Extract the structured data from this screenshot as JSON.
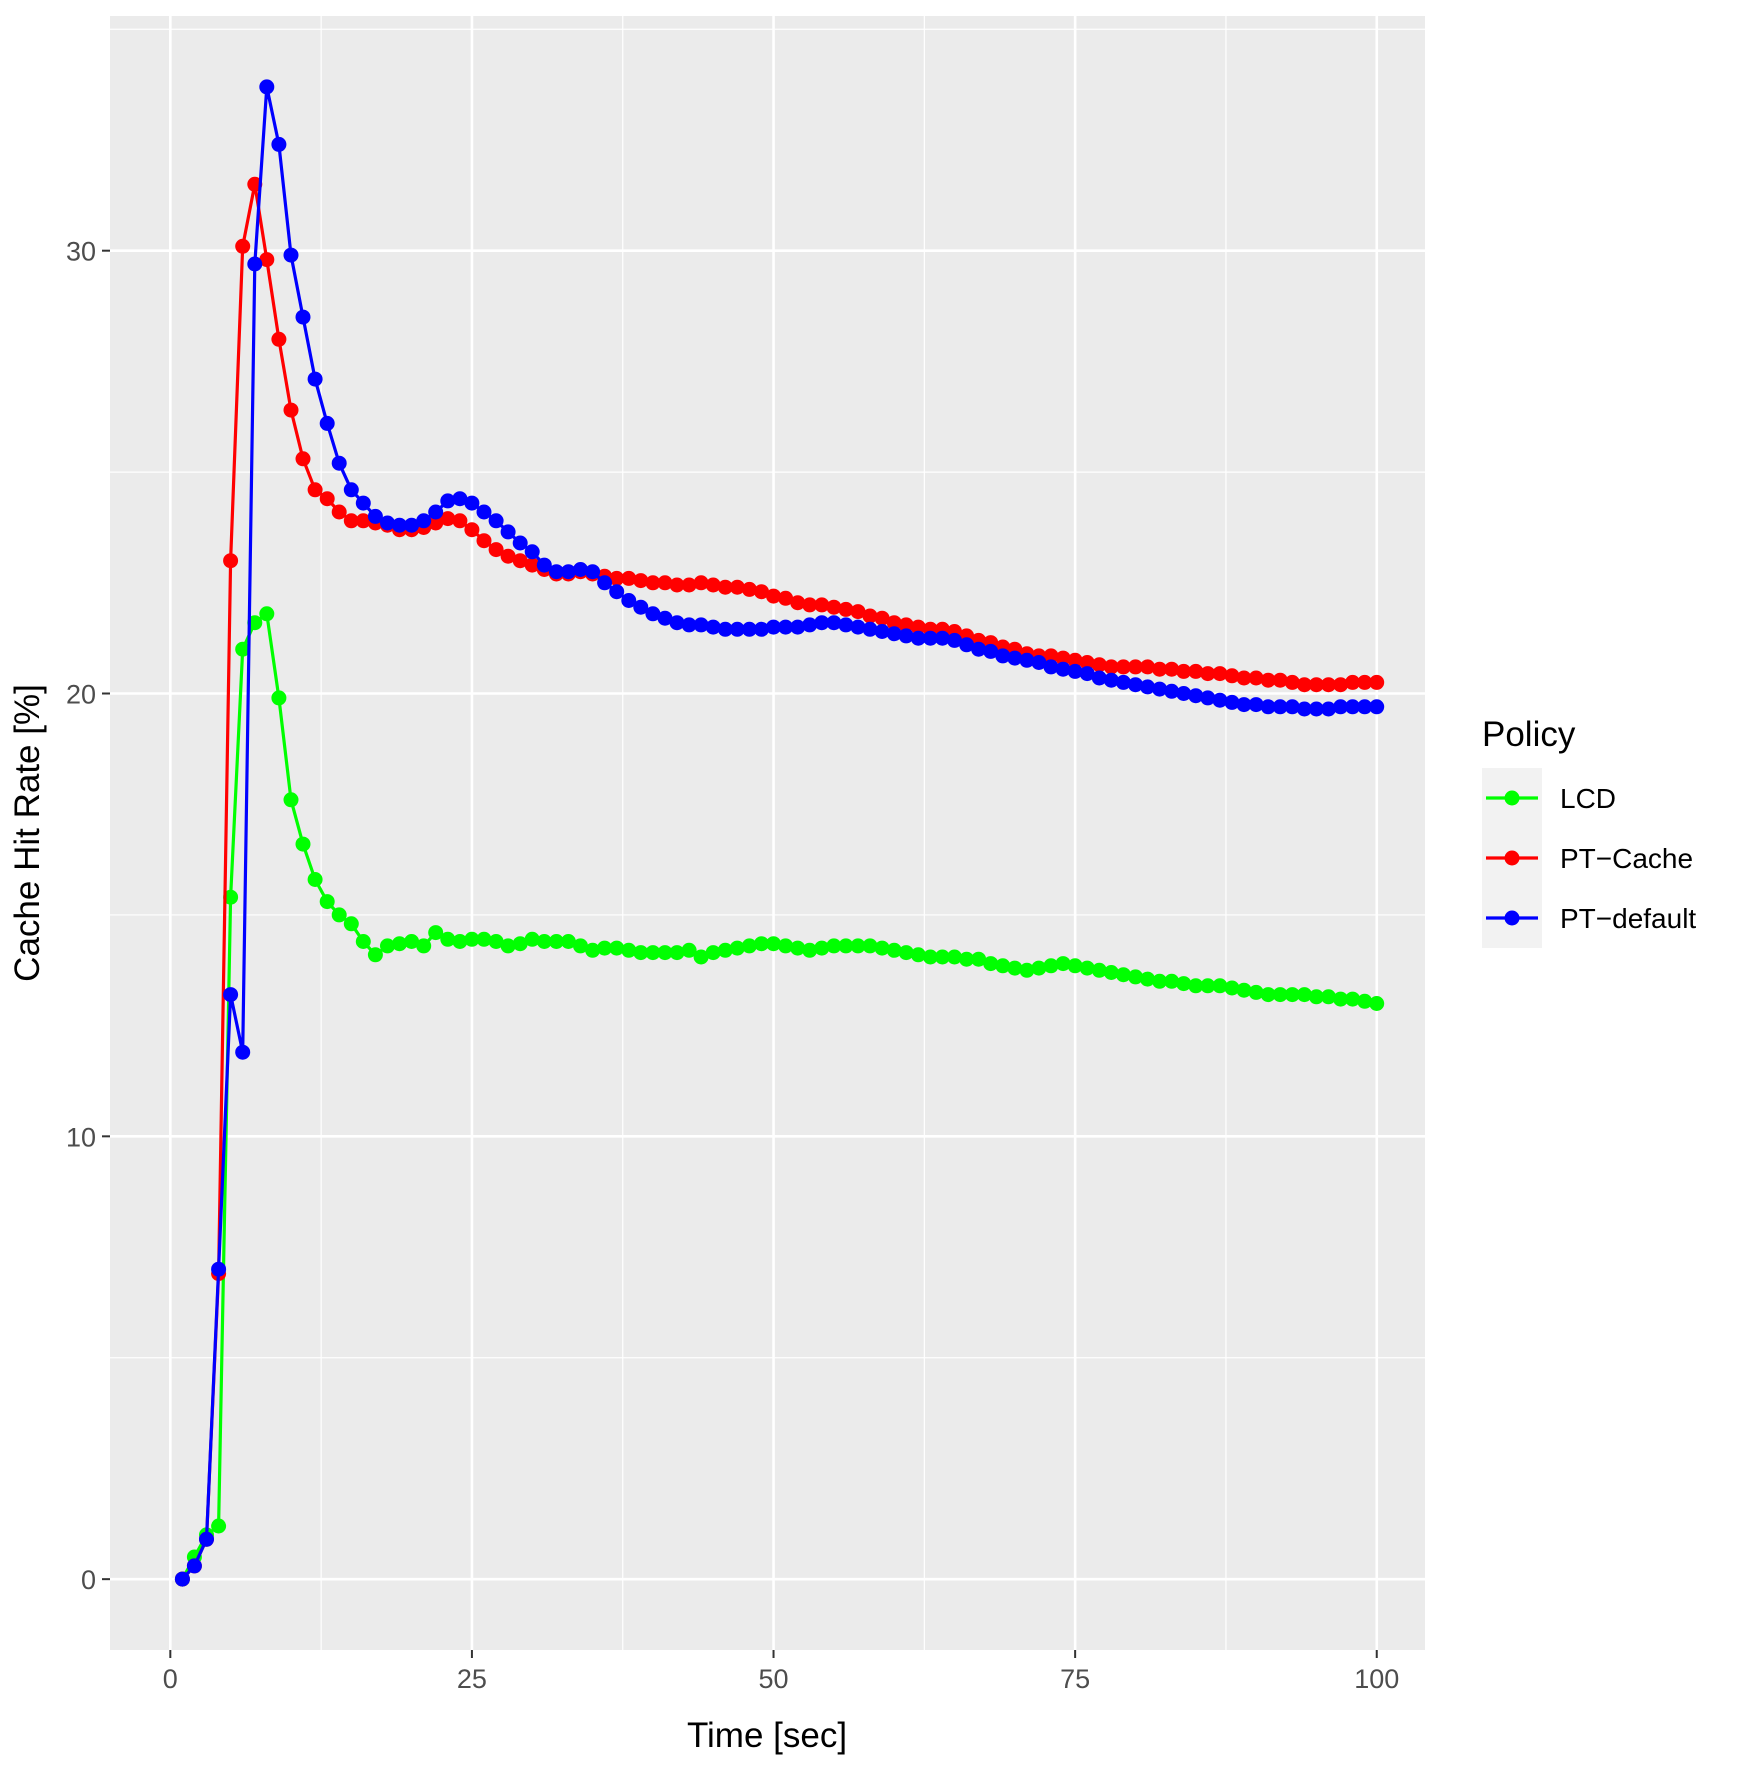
{
  "chart_data": {
    "type": "line",
    "xlabel": "Time [sec]",
    "ylabel": "Cache Hit Rate [%]",
    "xlim": [
      -5,
      104
    ],
    "ylim": [
      -1.6,
      35.3
    ],
    "xticks": [
      0,
      25,
      50,
      75,
      100
    ],
    "yticks": [
      0,
      10,
      20,
      30
    ],
    "legend": {
      "title": "Policy",
      "position": "right"
    },
    "colors": {
      "panel": "#EBEBEB",
      "grid": "#FFFFFF",
      "tick_text": "#4D4D4D"
    },
    "series_keys": [
      {
        "name": "LCD",
        "color": "#00FF00"
      },
      {
        "name": "PT−Cache",
        "color": "#FF0000"
      },
      {
        "name": "PT−default",
        "color": "#0000FF"
      }
    ],
    "series": [
      {
        "name": "LCD",
        "color": "#00FF00",
        "x": [
          1,
          2,
          3,
          4,
          5,
          6,
          7,
          8,
          9,
          10,
          11,
          12,
          13,
          14,
          15,
          16,
          17,
          18,
          19,
          20,
          21,
          22,
          23,
          24,
          25,
          26,
          27,
          28,
          29,
          30,
          31,
          32,
          33,
          34,
          35,
          36,
          37,
          38,
          39,
          40,
          41,
          42,
          43,
          44,
          45,
          46,
          47,
          48,
          49,
          50,
          51,
          52,
          53,
          54,
          55,
          56,
          57,
          58,
          59,
          60,
          61,
          62,
          63,
          64,
          65,
          66,
          67,
          68,
          69,
          70,
          71,
          72,
          73,
          74,
          75,
          76,
          77,
          78,
          79,
          80,
          81,
          82,
          83,
          84,
          85,
          86,
          87,
          88,
          89,
          90,
          91,
          92,
          93,
          94,
          95,
          96,
          97,
          98,
          99,
          100
        ],
        "values": [
          0.0,
          0.5,
          1.0,
          1.2,
          15.4,
          21.0,
          21.6,
          21.8,
          19.9,
          17.6,
          16.6,
          15.8,
          15.3,
          15.0,
          14.8,
          14.4,
          14.1,
          14.3,
          14.35,
          14.4,
          14.3,
          14.6,
          14.45,
          14.4,
          14.45,
          14.45,
          14.4,
          14.3,
          14.35,
          14.45,
          14.4,
          14.4,
          14.4,
          14.3,
          14.2,
          14.25,
          14.25,
          14.2,
          14.15,
          14.15,
          14.15,
          14.15,
          14.2,
          14.05,
          14.15,
          14.2,
          14.25,
          14.3,
          14.35,
          14.35,
          14.3,
          14.25,
          14.2,
          14.25,
          14.3,
          14.3,
          14.3,
          14.3,
          14.25,
          14.2,
          14.15,
          14.1,
          14.05,
          14.05,
          14.05,
          14.0,
          14.0,
          13.9,
          13.85,
          13.8,
          13.75,
          13.8,
          13.85,
          13.9,
          13.85,
          13.8,
          13.75,
          13.7,
          13.65,
          13.6,
          13.55,
          13.5,
          13.5,
          13.45,
          13.4,
          13.4,
          13.4,
          13.35,
          13.3,
          13.25,
          13.2,
          13.2,
          13.2,
          13.2,
          13.15,
          13.15,
          13.1,
          13.1,
          13.05,
          13.0
        ]
      },
      {
        "name": "PT−Cache",
        "color": "#FF0000",
        "x": [
          1,
          2,
          3,
          4,
          5,
          6,
          7,
          8,
          9,
          10,
          11,
          12,
          13,
          14,
          15,
          16,
          17,
          18,
          19,
          20,
          21,
          22,
          23,
          24,
          25,
          26,
          27,
          28,
          29,
          30,
          31,
          32,
          33,
          34,
          35,
          36,
          37,
          38,
          39,
          40,
          41,
          42,
          43,
          44,
          45,
          46,
          47,
          48,
          49,
          50,
          51,
          52,
          53,
          54,
          55,
          56,
          57,
          58,
          59,
          60,
          61,
          62,
          63,
          64,
          65,
          66,
          67,
          68,
          69,
          70,
          71,
          72,
          73,
          74,
          75,
          76,
          77,
          78,
          79,
          80,
          81,
          82,
          83,
          84,
          85,
          86,
          87,
          88,
          89,
          90,
          91,
          92,
          93,
          94,
          95,
          96,
          97,
          98,
          99,
          100
        ],
        "values": [
          0.0,
          0.3,
          0.9,
          6.9,
          23.0,
          30.1,
          31.5,
          29.8,
          28.0,
          26.4,
          25.3,
          24.6,
          24.4,
          24.1,
          23.9,
          23.9,
          23.85,
          23.8,
          23.7,
          23.7,
          23.75,
          23.85,
          23.95,
          23.9,
          23.7,
          23.45,
          23.25,
          23.1,
          23.0,
          22.9,
          22.8,
          22.7,
          22.7,
          22.75,
          22.7,
          22.65,
          22.6,
          22.6,
          22.55,
          22.5,
          22.5,
          22.45,
          22.45,
          22.5,
          22.45,
          22.4,
          22.4,
          22.35,
          22.3,
          22.2,
          22.15,
          22.05,
          22.0,
          22.0,
          21.95,
          21.9,
          21.85,
          21.75,
          21.7,
          21.6,
          21.55,
          21.5,
          21.45,
          21.45,
          21.4,
          21.3,
          21.2,
          21.15,
          21.05,
          21.0,
          20.9,
          20.85,
          20.85,
          20.8,
          20.75,
          20.7,
          20.65,
          20.6,
          20.6,
          20.6,
          20.6,
          20.55,
          20.55,
          20.5,
          20.5,
          20.45,
          20.45,
          20.4,
          20.35,
          20.35,
          20.3,
          20.3,
          20.25,
          20.2,
          20.2,
          20.2,
          20.2,
          20.25,
          20.25,
          20.25
        ]
      },
      {
        "name": "PT−default",
        "color": "#0000FF",
        "x": [
          1,
          2,
          3,
          4,
          5,
          6,
          7,
          8,
          9,
          10,
          11,
          12,
          13,
          14,
          15,
          16,
          17,
          18,
          19,
          20,
          21,
          22,
          23,
          24,
          25,
          26,
          27,
          28,
          29,
          30,
          31,
          32,
          33,
          34,
          35,
          36,
          37,
          38,
          39,
          40,
          41,
          42,
          43,
          44,
          45,
          46,
          47,
          48,
          49,
          50,
          51,
          52,
          53,
          54,
          55,
          56,
          57,
          58,
          59,
          60,
          61,
          62,
          63,
          64,
          65,
          66,
          67,
          68,
          69,
          70,
          71,
          72,
          73,
          74,
          75,
          76,
          77,
          78,
          79,
          80,
          81,
          82,
          83,
          84,
          85,
          86,
          87,
          88,
          89,
          90,
          91,
          92,
          93,
          94,
          95,
          96,
          97,
          98,
          99,
          100
        ],
        "values": [
          0.0,
          0.3,
          0.9,
          7.0,
          13.2,
          11.9,
          29.7,
          33.7,
          32.4,
          29.9,
          28.5,
          27.1,
          26.1,
          25.2,
          24.6,
          24.3,
          24.0,
          23.85,
          23.8,
          23.8,
          23.9,
          24.1,
          24.35,
          24.4,
          24.3,
          24.1,
          23.9,
          23.65,
          23.4,
          23.2,
          22.9,
          22.75,
          22.75,
          22.8,
          22.75,
          22.5,
          22.3,
          22.1,
          21.95,
          21.8,
          21.7,
          21.6,
          21.55,
          21.55,
          21.5,
          21.45,
          21.45,
          21.45,
          21.45,
          21.5,
          21.5,
          21.5,
          21.55,
          21.6,
          21.6,
          21.55,
          21.5,
          21.45,
          21.4,
          21.35,
          21.3,
          21.25,
          21.25,
          21.25,
          21.2,
          21.1,
          21.0,
          20.95,
          20.85,
          20.8,
          20.75,
          20.7,
          20.6,
          20.55,
          20.5,
          20.45,
          20.35,
          20.3,
          20.25,
          20.2,
          20.15,
          20.1,
          20.05,
          20.0,
          19.95,
          19.9,
          19.85,
          19.8,
          19.75,
          19.75,
          19.7,
          19.7,
          19.7,
          19.65,
          19.65,
          19.65,
          19.7,
          19.7,
          19.7,
          19.7
        ]
      }
    ]
  }
}
